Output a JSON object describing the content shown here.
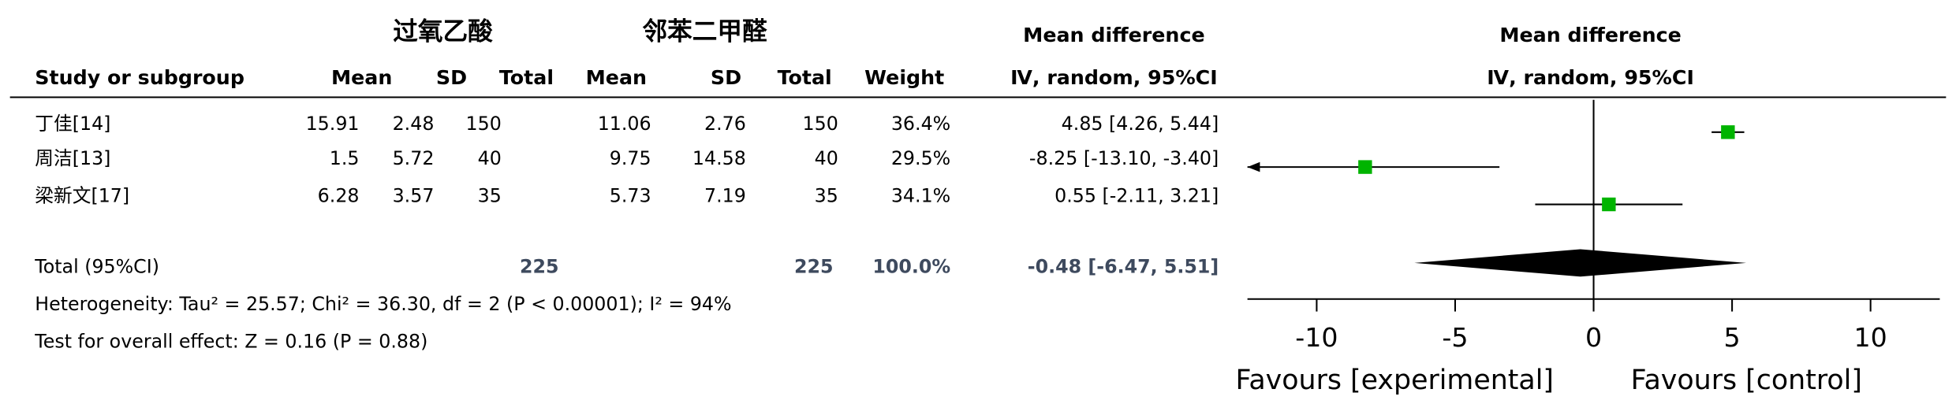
{
  "chart_data": {
    "type": "forest",
    "group_headers": [
      "过氧乙酸",
      "邻苯二甲醛"
    ],
    "effect_header": "Mean difference",
    "effect_subheader": "Ⅳ, random, 95%CI",
    "plot_header": "Mean difference",
    "plot_subheader": "Ⅳ, random, 95%CI",
    "columns": [
      "Study or subgroup",
      "Mean",
      "SD",
      "Total",
      "Mean",
      "SD",
      "Total",
      "Weight"
    ],
    "studies": [
      {
        "name": "丁佳[14]",
        "cells": [
          "15.91",
          "2.48",
          "150",
          "11.06",
          "2.76",
          "150",
          "36.4%"
        ],
        "md": 4.85,
        "ci": [
          4.26,
          5.44
        ],
        "value_label": "4.85 [4.26, 5.44]"
      },
      {
        "name": "周洁[13]",
        "cells": [
          "1.5",
          "5.72",
          "40",
          "9.75",
          "14.58",
          "40",
          "29.5%"
        ],
        "md": -8.25,
        "ci": [
          -13.1,
          -3.4
        ],
        "value_label": "-8.25 [-13.10, -3.40]"
      },
      {
        "name": "梁新文[17]",
        "cells": [
          "6.28",
          "3.57",
          "35",
          "5.73",
          "7.19",
          "35",
          "34.1%"
        ],
        "md": 0.55,
        "ci": [
          -2.11,
          3.21
        ],
        "value_label": "0.55 [-2.11, 3.21]"
      }
    ],
    "total": {
      "name": "Total (95%CI)",
      "cells": [
        "225",
        "225",
        "100.0%"
      ],
      "md": -0.48,
      "ci": [
        -6.47,
        5.51
      ],
      "value_label": "-0.48 [-6.47, 5.51]"
    },
    "heterogeneity": "Heterogeneity: Tau² = 25.57; Chi² = 36.30, df = 2 (P < 0.00001); I² = 94%",
    "overall_effect": "Test for overall effect: Z = 0.16 (P = 0.88)",
    "xlim": [
      -12.5,
      12.5
    ],
    "xticks": [
      -10,
      -5,
      0,
      5,
      10
    ],
    "xlabels": [
      "Favours [experimental]",
      "Favours [control]"
    ],
    "marker_color": "#00b400",
    "diamond_color": "#000000"
  }
}
